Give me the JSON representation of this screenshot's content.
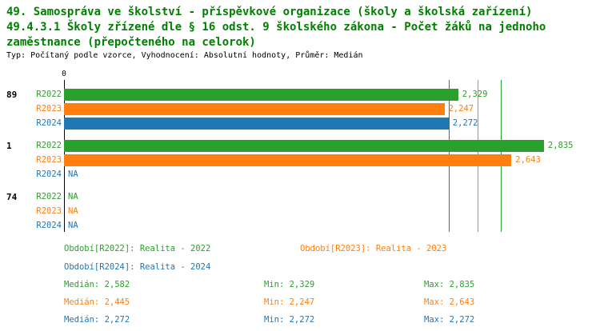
{
  "title": {
    "line1": "49. Samospráva ve školství - příspěvkové organizace (školy a školská zařízení)",
    "line2": "49.4.3.1 Školy zřízené dle § 16 odst. 9 školského zákona - Počet žáků na jednoho zaměstnance (přepočteného na celorok)",
    "subtitle": "Typ: Počítaný podle vzorce, Vyhodnocení: Absolutní hodnoty, Průměr: Medián"
  },
  "colors": {
    "title_green": "#008000",
    "green": "#2ca02c",
    "orange": "#ff7f0e",
    "blue": "#1f77b4",
    "axis": "#000000"
  },
  "axis": {
    "zero_label": "0"
  },
  "chart_data": {
    "type": "bar",
    "orientation": "horizontal",
    "title": "49.4.3.1 Školy zřízené dle § 16 odst. 9 školského zákona - Počet žáků na jednoho zaměstnance (přepočteného na celorok)",
    "categories": [
      "89",
      "1",
      "74"
    ],
    "xlim": [
      0,
      3.17
    ],
    "grid": false,
    "legend_position": "bottom",
    "series": [
      {
        "name": "R2022",
        "color": "#2ca02c",
        "values": [
          2.329,
          2.835,
          null
        ],
        "value_labels": [
          "2,329",
          "2,835",
          "NA"
        ]
      },
      {
        "name": "R2023",
        "color": "#ff7f0e",
        "values": [
          2.247,
          2.643,
          null
        ],
        "value_labels": [
          "2,247",
          "2,643",
          "NA"
        ]
      },
      {
        "name": "R2024",
        "color": "#1f77b4",
        "values": [
          2.272,
          null,
          null
        ],
        "value_labels": [
          "2,272",
          "NA",
          "NA"
        ]
      }
    ],
    "median_lines": [
      {
        "series": "R2022",
        "value": 2.582,
        "color": "#2ca02c"
      },
      {
        "series": "R2023",
        "value": 2.445,
        "color": "#ff7f0e"
      },
      {
        "series": "R2024",
        "value": 2.272,
        "color": "#1f77b4"
      }
    ]
  },
  "legend": [
    {
      "label": "Období[R2022]: Realita - 2022",
      "color": "#2ca02c"
    },
    {
      "label": "Období[R2023]: Realita - 2023",
      "color": "#ff7f0e"
    },
    {
      "label": "Období[R2024]: Realita - 2024",
      "color": "#1f77b4"
    }
  ],
  "stats": [
    {
      "median": "Medián: 2,582",
      "min": "Min: 2,329",
      "max": "Max: 2,835",
      "color": "#2ca02c"
    },
    {
      "median": "Medián: 2,445",
      "min": "Min: 2,247",
      "max": "Max: 2,643",
      "color": "#ff7f0e"
    },
    {
      "median": "Medián: 2,272",
      "min": "Min: 2,272",
      "max": "Max: 2,272",
      "color": "#1f77b4"
    }
  ]
}
